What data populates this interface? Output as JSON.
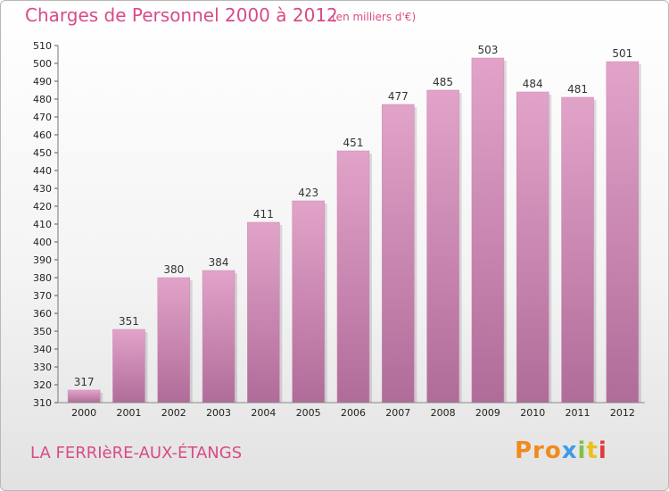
{
  "header": {
    "title": "Charges de Personnel 2000 à 2012",
    "subtitle": "(en milliers d'€)"
  },
  "footer": {
    "commune": "LA FERRIèRE-AUX-ÉTANGS",
    "logo": [
      "Pro",
      "x",
      "i",
      "t",
      "i"
    ]
  },
  "colors": {
    "bar_top": "#e2a3c9",
    "bar_bottom": "#b06c99",
    "text_accent": "#d84b86"
  },
  "chart_data": {
    "type": "bar",
    "categories": [
      "2000",
      "2001",
      "2002",
      "2003",
      "2004",
      "2005",
      "2006",
      "2007",
      "2008",
      "2009",
      "2010",
      "2011",
      "2012"
    ],
    "values": [
      317,
      351,
      380,
      384,
      411,
      423,
      451,
      477,
      485,
      503,
      484,
      481,
      501
    ],
    "title": "Charges de Personnel 2000 à 2012",
    "subtitle": "(en milliers d'€)",
    "xlabel": "",
    "ylabel": "",
    "ylim": [
      310,
      510
    ],
    "ytick_step": 10,
    "grid": false,
    "data_labels": true
  }
}
